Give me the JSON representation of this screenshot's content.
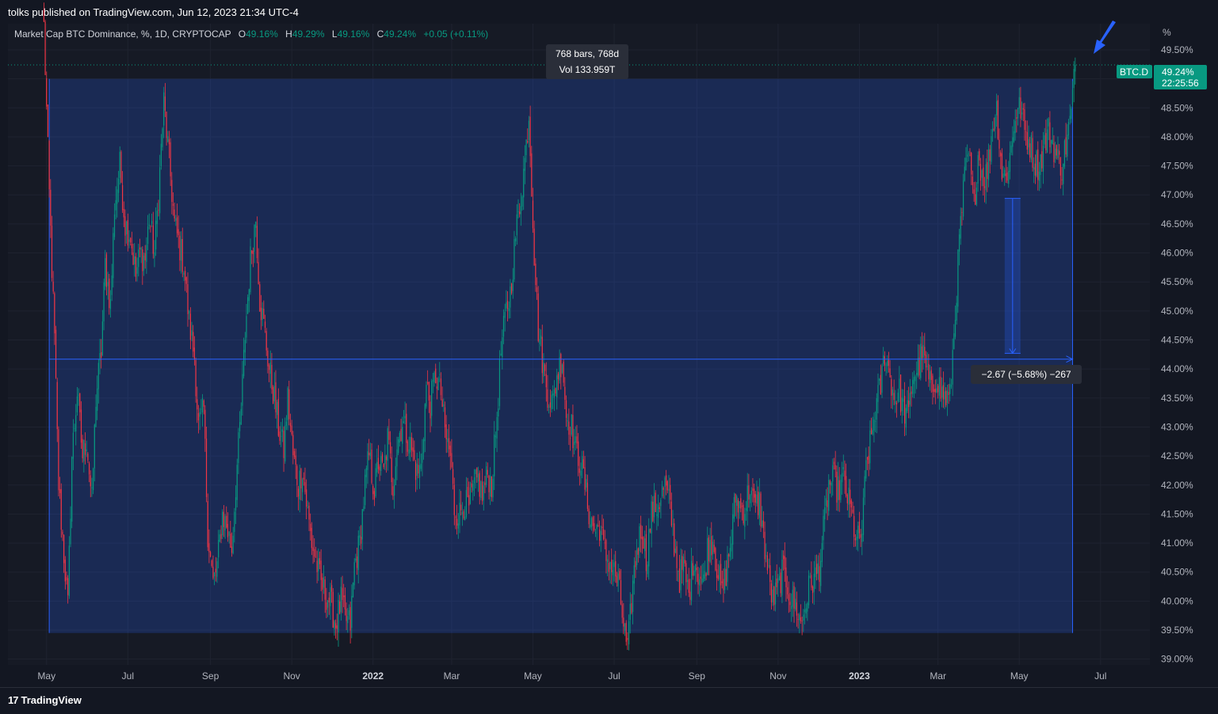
{
  "header": {
    "publisher": "tolks published on TradingView.com, Jun 12, 2023 21:34 UTC-4"
  },
  "legend": {
    "title": "Market Cap BTC Dominance, %, 1D, CRYPTOCAP",
    "open_label": "O",
    "open": "49.16%",
    "high_label": "H",
    "high": "49.29%",
    "low_label": "L",
    "low": "49.16%",
    "close_label": "C",
    "close": "49.24%",
    "change": "+0.05 (+0.11%)"
  },
  "price_axis": {
    "unit": "%"
  },
  "last_price": {
    "symbol": "BTC.D",
    "value": "49.24%",
    "countdown": "22:25:56"
  },
  "range_tooltip": {
    "bars": "768 bars, 768d",
    "volume": "Vol 133.959T"
  },
  "measure_tooltip": {
    "text": "−2.67 (−5.68%) −267"
  },
  "footer": {
    "logo": "17",
    "brand": "TradingView"
  },
  "colors": {
    "up": "#089981",
    "down": "#f23645",
    "accent": "#2962ff",
    "price_label": "#089981"
  },
  "chart_data": {
    "type": "candlestick",
    "x_tick_labels": [
      "May",
      "Jul",
      "Sep",
      "Nov",
      "2022",
      "Mar",
      "May",
      "Jul",
      "Sep",
      "Nov",
      "2023",
      "Mar",
      "May",
      "Jul"
    ],
    "x_tick_bold": [
      false,
      false,
      false,
      false,
      true,
      false,
      false,
      false,
      false,
      false,
      true,
      false,
      false,
      false
    ],
    "y_tick_labels": [
      "49.50%",
      "49.00%",
      "48.50%",
      "48.00%",
      "47.50%",
      "47.00%",
      "46.50%",
      "46.00%",
      "45.50%",
      "45.00%",
      "44.50%",
      "44.00%",
      "43.50%",
      "43.00%",
      "42.50%",
      "42.00%",
      "41.50%",
      "41.00%",
      "40.50%",
      "40.00%",
      "39.50%",
      "39.00%"
    ],
    "y_ticks": [
      49.5,
      49.0,
      48.5,
      48.0,
      47.5,
      47.0,
      46.5,
      46.0,
      45.5,
      45.0,
      44.5,
      44.0,
      43.5,
      43.0,
      42.5,
      42.0,
      41.5,
      41.0,
      40.5,
      40.0,
      39.5,
      39.0
    ],
    "ylim": [
      38.9,
      49.95
    ],
    "x_dates": [
      "2021-05-01",
      "2021-07-01",
      "2021-09-01",
      "2021-11-01",
      "2022-01-01",
      "2022-03-01",
      "2022-05-01",
      "2022-07-01",
      "2022-09-01",
      "2022-11-01",
      "2023-01-01",
      "2023-03-01",
      "2023-05-01",
      "2023-07-01"
    ],
    "series_close": [
      [
        "2021-04-29",
        49.9
      ],
      [
        "2021-05-03",
        47.0
      ],
      [
        "2021-05-07",
        44.5
      ],
      [
        "2021-05-10",
        42.0
      ],
      [
        "2021-05-14",
        40.8
      ],
      [
        "2021-05-17",
        39.9
      ],
      [
        "2021-05-20",
        42.5
      ],
      [
        "2021-05-24",
        43.6
      ],
      [
        "2021-05-28",
        42.5
      ],
      [
        "2021-05-31",
        42.8
      ],
      [
        "2021-06-04",
        41.7
      ],
      [
        "2021-06-07",
        43.5
      ],
      [
        "2021-06-11",
        44.3
      ],
      [
        "2021-06-14",
        45.8
      ],
      [
        "2021-06-18",
        45.1
      ],
      [
        "2021-06-21",
        46.8
      ],
      [
        "2021-06-25",
        47.5
      ],
      [
        "2021-06-29",
        46.5
      ],
      [
        "2021-07-03",
        46.3
      ],
      [
        "2021-07-07",
        45.6
      ],
      [
        "2021-07-10",
        46.0
      ],
      [
        "2021-07-14",
        45.9
      ],
      [
        "2021-07-17",
        46.6
      ],
      [
        "2021-07-21",
        46.0
      ],
      [
        "2021-07-24",
        47.0
      ],
      [
        "2021-07-28",
        48.6
      ],
      [
        "2021-08-01",
        47.6
      ],
      [
        "2021-08-05",
        46.5
      ],
      [
        "2021-08-09",
        46.1
      ],
      [
        "2021-08-12",
        45.8
      ],
      [
        "2021-08-16",
        44.8
      ],
      [
        "2021-08-20",
        44.2
      ],
      [
        "2021-08-23",
        43.0
      ],
      [
        "2021-08-27",
        43.3
      ],
      [
        "2021-08-30",
        41.2
      ],
      [
        "2021-09-03",
        40.3
      ],
      [
        "2021-09-06",
        40.6
      ],
      [
        "2021-09-10",
        41.5
      ],
      [
        "2021-09-13",
        41.3
      ],
      [
        "2021-09-17",
        40.9
      ],
      [
        "2021-09-20",
        42.0
      ],
      [
        "2021-09-24",
        43.3
      ],
      [
        "2021-09-27",
        44.6
      ],
      [
        "2021-10-01",
        45.9
      ],
      [
        "2021-10-05",
        46.6
      ],
      [
        "2021-10-08",
        45.2
      ],
      [
        "2021-10-12",
        44.6
      ],
      [
        "2021-10-15",
        44.0
      ],
      [
        "2021-10-19",
        43.5
      ],
      [
        "2021-10-22",
        43.0
      ],
      [
        "2021-10-26",
        42.6
      ],
      [
        "2021-10-29",
        43.5
      ],
      [
        "2021-11-02",
        42.5
      ],
      [
        "2021-11-06",
        42.0
      ],
      [
        "2021-11-09",
        42.3
      ],
      [
        "2021-11-13",
        41.5
      ],
      [
        "2021-11-16",
        41.0
      ],
      [
        "2021-11-20",
        40.6
      ],
      [
        "2021-11-23",
        40.3
      ],
      [
        "2021-11-27",
        40.1
      ],
      [
        "2021-11-30",
        40.0
      ],
      [
        "2021-12-04",
        39.6
      ],
      [
        "2021-12-08",
        40.0
      ],
      [
        "2021-12-11",
        39.7
      ],
      [
        "2021-12-15",
        39.6
      ],
      [
        "2021-12-18",
        40.6
      ],
      [
        "2021-12-22",
        41.0
      ],
      [
        "2021-12-26",
        42.0
      ],
      [
        "2021-12-29",
        42.5
      ],
      [
        "2022-01-02",
        41.9
      ],
      [
        "2022-01-05",
        42.4
      ],
      [
        "2022-01-09",
        42.2
      ],
      [
        "2022-01-12",
        42.8
      ],
      [
        "2022-01-16",
        42.0
      ],
      [
        "2022-01-19",
        42.7
      ],
      [
        "2022-01-23",
        43.1
      ],
      [
        "2022-01-26",
        42.9
      ],
      [
        "2022-01-30",
        42.6
      ],
      [
        "2022-02-03",
        42.2
      ],
      [
        "2022-02-06",
        42.3
      ],
      [
        "2022-02-10",
        43.7
      ],
      [
        "2022-02-13",
        43.4
      ],
      [
        "2022-02-17",
        43.9
      ],
      [
        "2022-02-21",
        43.6
      ],
      [
        "2022-02-24",
        42.9
      ],
      [
        "2022-02-28",
        42.5
      ],
      [
        "2022-03-03",
        41.6
      ],
      [
        "2022-03-07",
        41.5
      ],
      [
        "2022-03-10",
        41.7
      ],
      [
        "2022-03-14",
        41.6
      ],
      [
        "2022-03-17",
        41.9
      ],
      [
        "2022-03-21",
        42.1
      ],
      [
        "2022-03-24",
        41.8
      ],
      [
        "2022-03-28",
        42.2
      ],
      [
        "2022-03-31",
        42.0
      ],
      [
        "2022-04-04",
        43.2
      ],
      [
        "2022-04-07",
        44.3
      ],
      [
        "2022-04-11",
        45.0
      ],
      [
        "2022-04-14",
        45.3
      ],
      [
        "2022-04-18",
        46.3
      ],
      [
        "2022-04-21",
        46.8
      ],
      [
        "2022-04-25",
        47.6
      ],
      [
        "2022-04-28",
        48.4
      ],
      [
        "2022-05-02",
        46.0
      ],
      [
        "2022-05-05",
        44.7
      ],
      [
        "2022-05-09",
        44.0
      ],
      [
        "2022-05-12",
        43.6
      ],
      [
        "2022-05-16",
        43.4
      ],
      [
        "2022-05-19",
        43.9
      ],
      [
        "2022-05-23",
        44.2
      ],
      [
        "2022-05-26",
        43.2
      ],
      [
        "2022-05-30",
        43.0
      ],
      [
        "2022-06-02",
        42.6
      ],
      [
        "2022-06-06",
        42.4
      ],
      [
        "2022-06-09",
        42.0
      ],
      [
        "2022-06-13",
        41.4
      ],
      [
        "2022-06-17",
        41.2
      ],
      [
        "2022-06-20",
        41.3
      ],
      [
        "2022-06-24",
        40.8
      ],
      [
        "2022-06-27",
        40.7
      ],
      [
        "2022-07-01",
        40.5
      ],
      [
        "2022-07-04",
        40.3
      ],
      [
        "2022-07-08",
        39.6
      ],
      [
        "2022-07-11",
        39.1
      ],
      [
        "2022-07-15",
        40.3
      ],
      [
        "2022-07-18",
        40.9
      ],
      [
        "2022-07-22",
        41.3
      ],
      [
        "2022-07-25",
        40.7
      ],
      [
        "2022-07-29",
        41.5
      ],
      [
        "2022-08-01",
        41.6
      ],
      [
        "2022-08-05",
        41.8
      ],
      [
        "2022-08-08",
        42.0
      ],
      [
        "2022-08-12",
        41.6
      ],
      [
        "2022-08-15",
        41.0
      ],
      [
        "2022-08-19",
        40.4
      ],
      [
        "2022-08-22",
        40.6
      ],
      [
        "2022-08-26",
        40.1
      ],
      [
        "2022-08-30",
        40.8
      ],
      [
        "2022-09-02",
        40.5
      ],
      [
        "2022-09-06",
        40.3
      ],
      [
        "2022-09-09",
        40.9
      ],
      [
        "2022-09-13",
        41.1
      ],
      [
        "2022-09-16",
        40.6
      ],
      [
        "2022-09-20",
        40.1
      ],
      [
        "2022-09-23",
        40.5
      ],
      [
        "2022-09-27",
        41.1
      ],
      [
        "2022-09-30",
        41.8
      ],
      [
        "2022-10-04",
        41.6
      ],
      [
        "2022-10-07",
        41.6
      ],
      [
        "2022-10-11",
        42.0
      ],
      [
        "2022-10-14",
        41.6
      ],
      [
        "2022-10-18",
        41.7
      ],
      [
        "2022-10-21",
        41.1
      ],
      [
        "2022-10-25",
        40.4
      ],
      [
        "2022-10-28",
        40.0
      ],
      [
        "2022-11-01",
        40.2
      ],
      [
        "2022-11-04",
        40.5
      ],
      [
        "2022-11-08",
        40.3
      ],
      [
        "2022-11-11",
        40.0
      ],
      [
        "2022-11-15",
        39.9
      ],
      [
        "2022-11-18",
        39.6
      ],
      [
        "2022-11-22",
        40.0
      ],
      [
        "2022-11-25",
        40.3
      ],
      [
        "2022-11-29",
        40.4
      ],
      [
        "2022-12-02",
        40.6
      ],
      [
        "2022-12-06",
        41.4
      ],
      [
        "2022-12-09",
        42.0
      ],
      [
        "2022-12-13",
        42.1
      ],
      [
        "2022-12-16",
        41.9
      ],
      [
        "2022-12-20",
        42.1
      ],
      [
        "2022-12-23",
        41.8
      ],
      [
        "2022-12-27",
        41.4
      ],
      [
        "2022-12-30",
        41.0
      ],
      [
        "2023-01-03",
        41.2
      ],
      [
        "2023-01-06",
        42.3
      ],
      [
        "2023-01-10",
        42.8
      ],
      [
        "2023-01-13",
        43.3
      ],
      [
        "2023-01-17",
        43.7
      ],
      [
        "2023-01-20",
        44.3
      ],
      [
        "2023-01-24",
        43.9
      ],
      [
        "2023-01-27",
        43.5
      ],
      [
        "2023-01-31",
        43.6
      ],
      [
        "2023-02-03",
        43.3
      ],
      [
        "2023-02-07",
        43.2
      ],
      [
        "2023-02-10",
        43.9
      ],
      [
        "2023-02-14",
        44.0
      ],
      [
        "2023-02-17",
        44.3
      ],
      [
        "2023-02-21",
        43.9
      ],
      [
        "2023-02-24",
        43.6
      ],
      [
        "2023-02-28",
        43.9
      ],
      [
        "2023-03-03",
        43.6
      ],
      [
        "2023-03-07",
        43.5
      ],
      [
        "2023-03-10",
        43.5
      ],
      [
        "2023-03-14",
        45.0
      ],
      [
        "2023-03-17",
        46.2
      ],
      [
        "2023-03-21",
        47.3
      ],
      [
        "2023-03-24",
        47.7
      ],
      [
        "2023-03-28",
        46.8
      ],
      [
        "2023-03-31",
        47.7
      ],
      [
        "2023-04-04",
        47.3
      ],
      [
        "2023-04-07",
        47.4
      ],
      [
        "2023-04-11",
        48.2
      ],
      [
        "2023-04-14",
        48.5
      ],
      [
        "2023-04-18",
        47.4
      ],
      [
        "2023-04-21",
        47.3
      ],
      [
        "2023-04-25",
        47.8
      ],
      [
        "2023-04-28",
        48.4
      ],
      [
        "2023-05-02",
        48.5
      ],
      [
        "2023-05-05",
        48.1
      ],
      [
        "2023-05-09",
        47.9
      ],
      [
        "2023-05-12",
        47.6
      ],
      [
        "2023-05-16",
        47.5
      ],
      [
        "2023-05-19",
        47.8
      ],
      [
        "2023-05-23",
        48.1
      ],
      [
        "2023-05-26",
        47.9
      ],
      [
        "2023-05-30",
        47.6
      ],
      [
        "2023-06-02",
        47.5
      ],
      [
        "2023-06-06",
        48.0
      ],
      [
        "2023-06-09",
        48.4
      ],
      [
        "2023-06-12",
        49.24
      ]
    ],
    "range_box": {
      "start": "2021-05-03",
      "end": "2023-06-10",
      "top": 49.0,
      "bottom": 39.45
    },
    "horizontal_line": 44.17,
    "measure": {
      "date": "2023-04-26",
      "from": 46.94,
      "to": 44.27
    },
    "last_value": 49.24,
    "x_range": [
      "2021-04-02",
      "2023-08-07"
    ]
  }
}
